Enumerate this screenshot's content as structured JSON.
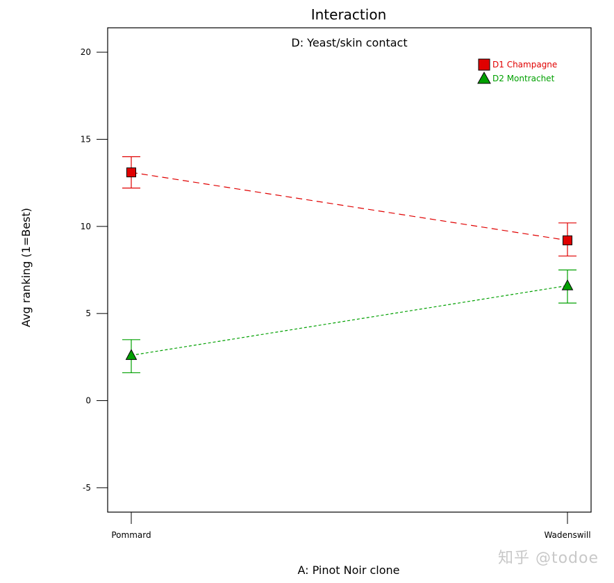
{
  "chart_data": {
    "type": "line",
    "title": "Interaction",
    "subtitle": "D: Yeast/skin contact",
    "xlabel": "A: Pinot Noir clone",
    "ylabel": "Avg ranking (1=Best)",
    "categories": [
      "Pommard",
      "Wadenswill"
    ],
    "ylim": [
      -6.4,
      21.4
    ],
    "yticks": [
      -5,
      0,
      5,
      10,
      15,
      20
    ],
    "legend_position": "top-right",
    "series": [
      {
        "name": "D1 Champagne",
        "marker": "square",
        "color": "#e00000",
        "line_style": "dashed",
        "values": [
          13.1,
          9.2
        ],
        "error_low": [
          12.2,
          8.3
        ],
        "error_high": [
          14.0,
          10.2
        ]
      },
      {
        "name": "D2 Montrachet",
        "marker": "triangle",
        "color": "#00a000",
        "line_style": "dotted",
        "values": [
          2.6,
          6.6
        ],
        "error_low": [
          1.6,
          5.6
        ],
        "error_high": [
          3.5,
          7.5
        ]
      }
    ]
  },
  "watermark": "知乎 @todoe"
}
